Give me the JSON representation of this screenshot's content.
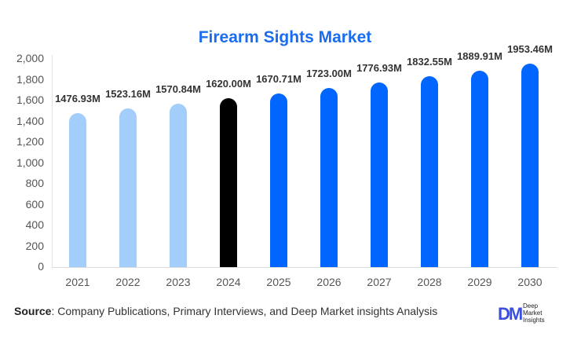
{
  "title": "Firearm Sights Market",
  "source": {
    "label": "Source",
    "text": ": Company Publications, Primary Interviews, and Deep Market insights Analysis"
  },
  "logo": {
    "mark": "DM",
    "line1": "Deep",
    "line2": "Market",
    "line3": "Insights"
  },
  "colors": {
    "historical": "#a3cdfb",
    "base_year": "#000000",
    "forecast": "#0066ff",
    "title": "#1a6cf0"
  },
  "chart_data": {
    "type": "bar",
    "title": "Firearm Sights Market",
    "xlabel": "",
    "ylabel": "",
    "ylim": [
      0,
      2000
    ],
    "yticks": [
      "0",
      "200",
      "400",
      "600",
      "800",
      "1,000",
      "1,200",
      "1,400",
      "1,600",
      "1,800",
      "2,000"
    ],
    "categories": [
      "2021",
      "2022",
      "2023",
      "2024",
      "2025",
      "2026",
      "2027",
      "2028",
      "2029",
      "2030"
    ],
    "values": [
      1476.93,
      1523.16,
      1570.84,
      1620.0,
      1670.71,
      1723.0,
      1776.93,
      1832.55,
      1889.91,
      1953.46
    ],
    "labels": [
      "1476.93M",
      "1523.16M",
      "1570.84M",
      "1620.00M",
      "1670.71M",
      "1723.00M",
      "1776.93M",
      "1832.55M",
      "1889.91M",
      "1953.46M"
    ],
    "bar_colors": [
      "#a3cdfb",
      "#a3cdfb",
      "#a3cdfb",
      "#000000",
      "#0066ff",
      "#0066ff",
      "#0066ff",
      "#0066ff",
      "#0066ff",
      "#0066ff"
    ],
    "grid": false,
    "legend": null
  }
}
